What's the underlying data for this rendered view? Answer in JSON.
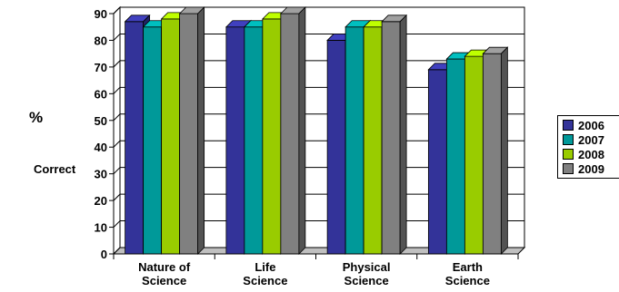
{
  "chart_data": {
    "type": "bar",
    "title": "",
    "ylabel_lines": [
      "%",
      "Correct"
    ],
    "xlabel": "",
    "categories": [
      [
        "Nature of",
        "Science"
      ],
      [
        "Life",
        "Science"
      ],
      [
        "Physical",
        "Science"
      ],
      [
        "Earth",
        "Science"
      ]
    ],
    "ylim": [
      0,
      90
    ],
    "yticks": [
      0,
      10,
      20,
      30,
      40,
      50,
      60,
      70,
      80,
      90
    ],
    "grid": true,
    "style": "3d",
    "legend_position": "right",
    "series": [
      {
        "name": "2006",
        "color": "#333399",
        "values": [
          87,
          85,
          80,
          69
        ]
      },
      {
        "name": "2007",
        "color": "#009999",
        "values": [
          85,
          85,
          85,
          73
        ]
      },
      {
        "name": "2008",
        "color": "#99cc00",
        "values": [
          88,
          88,
          85,
          74
        ]
      },
      {
        "name": "2009",
        "color": "#808080",
        "values": [
          90,
          90,
          87,
          75
        ]
      }
    ]
  }
}
